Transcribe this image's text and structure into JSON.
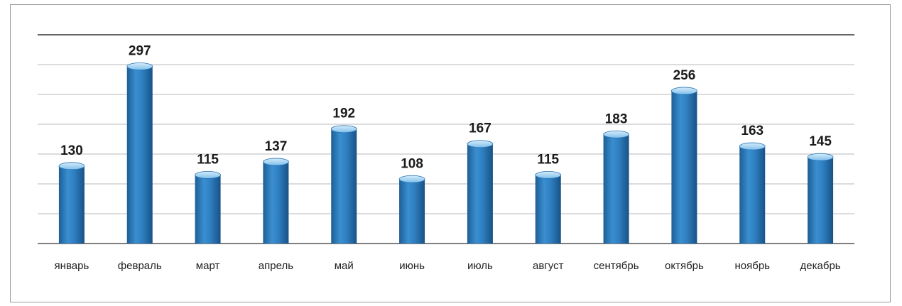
{
  "chart_data": {
    "type": "bar",
    "categories": [
      "январь",
      "февраль",
      "март",
      "апрель",
      "май",
      "июнь",
      "июль",
      "август",
      "сентябрь",
      "октябрь",
      "ноябрь",
      "декабрь"
    ],
    "values": [
      130,
      297,
      115,
      137,
      192,
      108,
      167,
      115,
      183,
      256,
      163,
      145
    ],
    "title": "",
    "xlabel": "",
    "ylabel": "",
    "ylim": [
      0,
      350
    ],
    "y_gridline_step": 50,
    "grid": true,
    "data_labels": true,
    "legend": "none",
    "bar_color": "#2f7fc1",
    "bar_highlight": "#5aaee6",
    "bar_cap_color": "#a9d6f5"
  }
}
